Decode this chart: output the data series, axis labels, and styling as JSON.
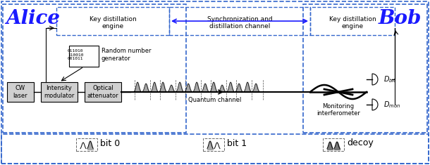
{
  "bg_color": "#ffffff",
  "blue": "#1a1aff",
  "dark_blue": "#0000cc",
  "gray": "#888888",
  "light_gray": "#cccccc",
  "dark_gray": "#555555",
  "box_edge": "#3333cc",
  "alice_label": "Alice",
  "bob_label": "Bob",
  "key_dist_label": "Key distillation\nengine",
  "sync_label": "Synchronization and\ndistillation channel",
  "rng_label": "Random number\ngenerator",
  "rng_bits": "011010\n110010\n001011",
  "cw_label": "CW\nlaser",
  "im_label": "Intensity\nmodulator",
  "oa_label": "Optical\nattenuator",
  "qc_label": "Quantum channel",
  "mi_label": "Monitoring\ninterferometer",
  "dbit_label": "D",
  "dmon_label": "D",
  "bit0_label": "bit 0",
  "bit1_label": "bit 1",
  "decoy_label": "decoy"
}
